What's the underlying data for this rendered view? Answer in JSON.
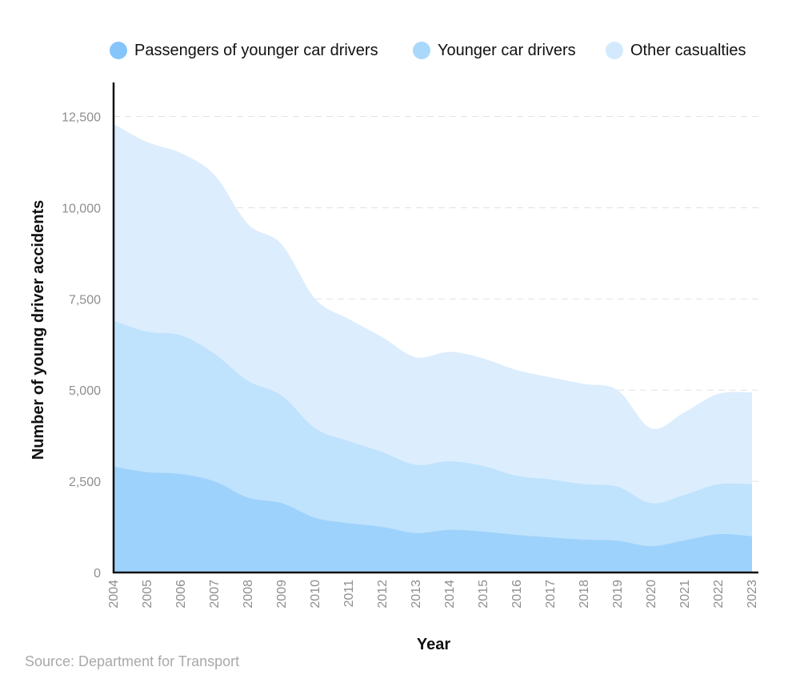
{
  "chart_data": {
    "type": "area",
    "stacked": true,
    "title": "",
    "xlabel": "Year",
    "ylabel": "Number of young driver accidents",
    "ylim": [
      0,
      13500
    ],
    "yticks": [
      0,
      2500,
      5000,
      7500,
      10000,
      12500
    ],
    "ytick_labels": [
      "0",
      "2,500",
      "5,000",
      "7,500",
      "10,000",
      "12,500"
    ],
    "grid": true,
    "legend_position": "top",
    "x": [
      "2004",
      "2005",
      "2006",
      "2007",
      "2008",
      "2009",
      "2010",
      "2011",
      "2012",
      "2013",
      "2014",
      "2015",
      "2016",
      "2017",
      "2018",
      "2019",
      "2020",
      "2021",
      "2022",
      "2023"
    ],
    "series": [
      {
        "name": "Passengers of younger car drivers",
        "color": "#9dd2fc",
        "values": [
          2900,
          2750,
          2700,
          2500,
          2050,
          1900,
          1500,
          1350,
          1250,
          1080,
          1170,
          1120,
          1030,
          960,
          900,
          870,
          720,
          880,
          1050,
          990
        ]
      },
      {
        "name": "Younger car drivers",
        "color": "#bfe2fd",
        "values": [
          4000,
          3850,
          3800,
          3500,
          3200,
          2950,
          2450,
          2250,
          2050,
          1870,
          1880,
          1800,
          1620,
          1590,
          1520,
          1480,
          1180,
          1250,
          1370,
          1430
        ]
      },
      {
        "name": "Other casualties",
        "color": "#dcedfd",
        "values": [
          5400,
          5200,
          5000,
          4900,
          4300,
          4150,
          3550,
          3350,
          3150,
          2950,
          3000,
          2950,
          2900,
          2800,
          2750,
          2650,
          2050,
          2270,
          2480,
          2520
        ]
      }
    ]
  },
  "source": "Source: Department for Transport"
}
